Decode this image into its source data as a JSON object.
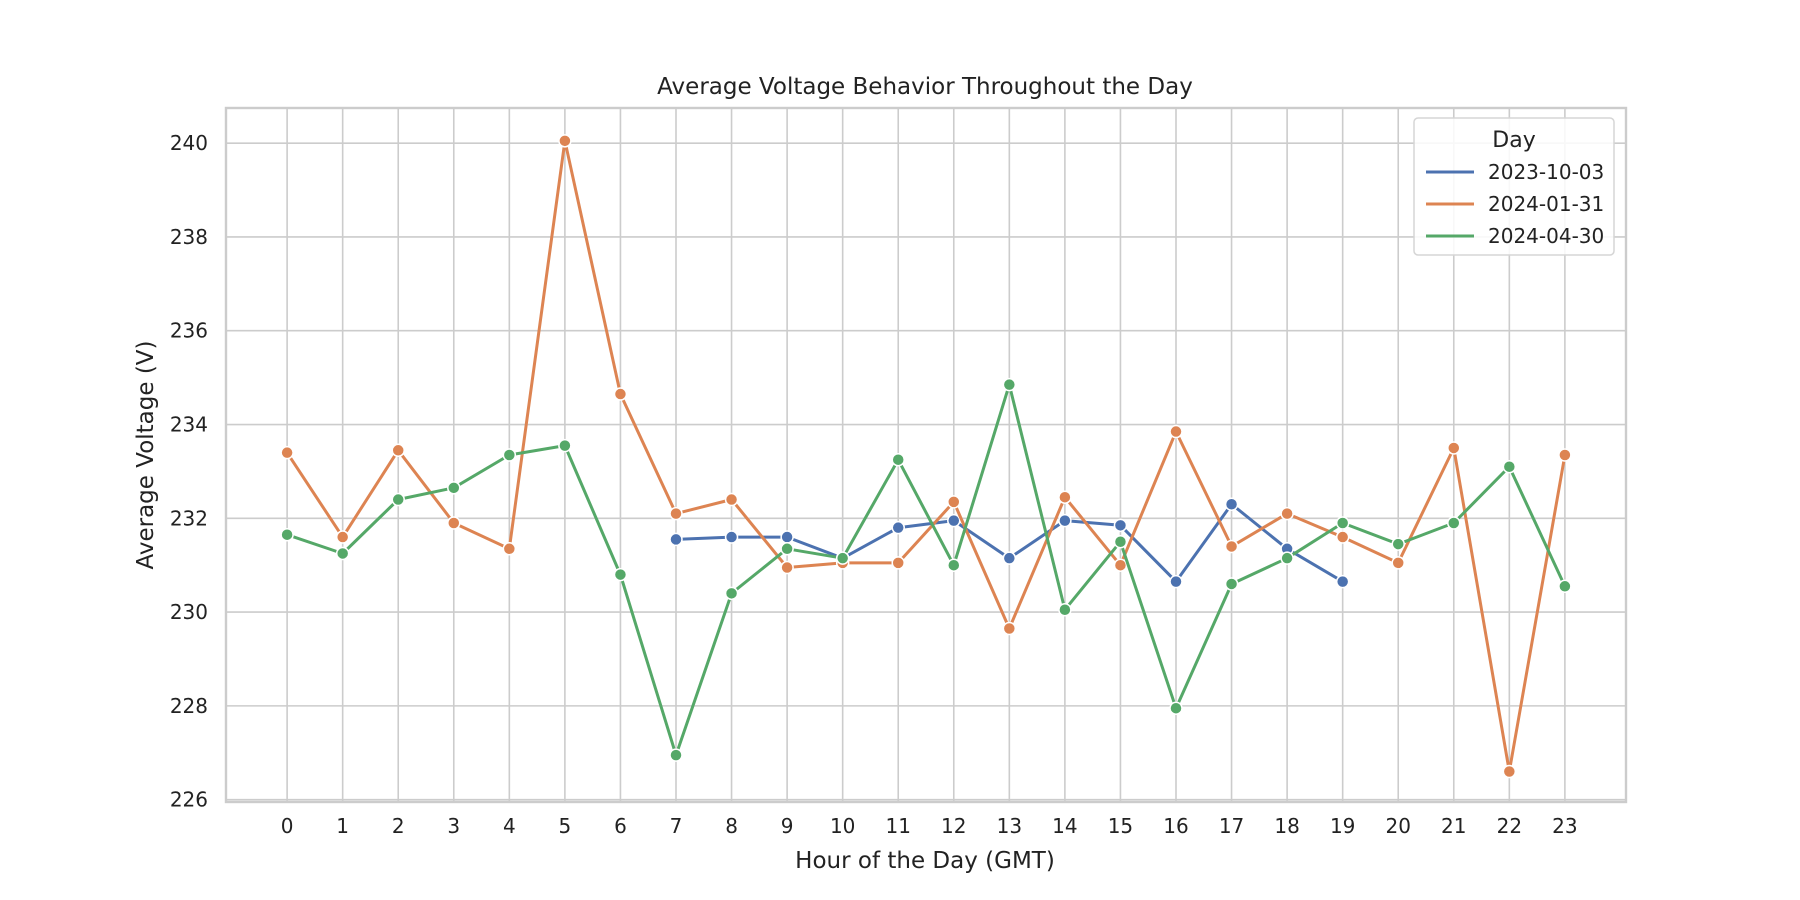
{
  "chart_data": {
    "type": "line",
    "title": "Average Voltage Behavior Throughout the Day",
    "xlabel": "Hour of the Day (GMT)",
    "ylabel": "Average Voltage (V)",
    "x": [
      0,
      1,
      2,
      3,
      4,
      5,
      6,
      7,
      8,
      9,
      10,
      11,
      12,
      13,
      14,
      15,
      16,
      17,
      18,
      19,
      20,
      21,
      22,
      23
    ],
    "xlim": [
      -1.1,
      24.1
    ],
    "ylim": [
      225.95,
      240.75
    ],
    "yticks": [
      226,
      228,
      230,
      232,
      234,
      236,
      238,
      240
    ],
    "grid": true,
    "legend": {
      "title": "Day",
      "placement": "top-right"
    },
    "series": [
      {
        "name": "2023-10-03",
        "color": "#4c72b0",
        "values": [
          null,
          null,
          null,
          null,
          null,
          null,
          null,
          231.55,
          231.6,
          231.6,
          231.15,
          231.8,
          231.95,
          231.15,
          231.95,
          231.85,
          230.65,
          232.3,
          231.35,
          230.65,
          null,
          null,
          null,
          null
        ]
      },
      {
        "name": "2024-01-31",
        "color": "#dd8452",
        "values": [
          233.4,
          231.6,
          233.45,
          231.9,
          231.35,
          240.05,
          234.65,
          232.1,
          232.4,
          230.95,
          231.05,
          231.05,
          232.35,
          229.65,
          232.45,
          231.0,
          233.85,
          231.4,
          232.1,
          231.6,
          231.05,
          233.5,
          226.6,
          233.35
        ]
      },
      {
        "name": "2024-04-30",
        "color": "#55a868",
        "values": [
          231.65,
          231.25,
          232.4,
          232.65,
          233.35,
          233.55,
          230.8,
          226.95,
          230.4,
          231.35,
          231.15,
          233.25,
          231.0,
          234.85,
          230.05,
          231.5,
          227.95,
          230.6,
          231.15,
          231.9,
          231.45,
          231.9,
          233.1,
          230.55
        ]
      }
    ]
  }
}
